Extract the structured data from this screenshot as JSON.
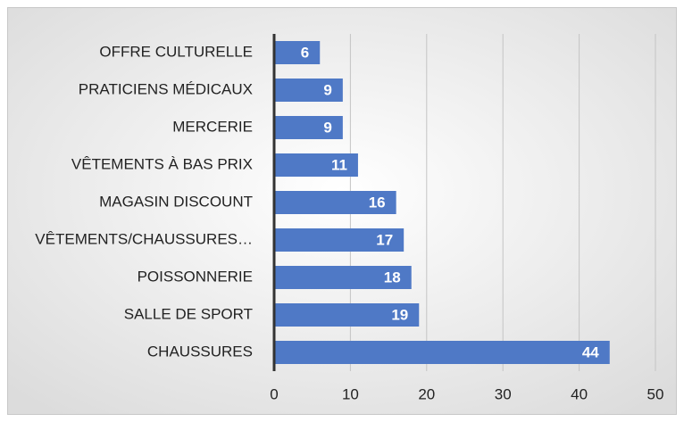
{
  "chart_data": {
    "type": "bar",
    "orientation": "horizontal",
    "categories": [
      "OFFRE CULTURELLE",
      "PRATICIENS MÉDICAUX",
      "MERCERIE",
      "VÊTEMENTS À BAS PRIX",
      "MAGASIN DISCOUNT",
      "VÊTEMENTS/CHAUSSURES…",
      "POISSONNERIE",
      "SALLE DE SPORT",
      "CHAUSSURES"
    ],
    "values": [
      6,
      9,
      9,
      11,
      16,
      17,
      18,
      19,
      44
    ],
    "color": "#4f79c6",
    "xlim": [
      0,
      50
    ],
    "xticks": [
      0,
      10,
      20,
      30,
      40,
      50
    ],
    "grid": true
  }
}
